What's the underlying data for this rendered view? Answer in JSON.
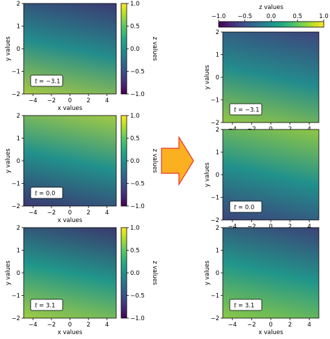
{
  "colormap": "viridis",
  "colors": {
    "arrow_fill": "#fbb022",
    "arrow_stroke": "#e8332a"
  },
  "chart_data": [
    {
      "group": "before",
      "type": "heatmap",
      "function": "z = sin(x + 2*y + t)",
      "xlabel": "x values",
      "ylabel": "y values",
      "xlim": [
        -5,
        5
      ],
      "ylim": [
        -2,
        2
      ],
      "xticks": [
        -4,
        -2,
        0,
        2,
        4
      ],
      "yticks": [
        -2,
        -1,
        0,
        1,
        2
      ],
      "colorbar": {
        "label": "z values",
        "range": [
          -1.0,
          1.0
        ],
        "ticks": [
          -1.0,
          -0.5,
          0.0,
          0.5,
          1.0
        ],
        "placement": "right of each panel"
      },
      "panels": [
        {
          "t": -3.1,
          "annotation": "t = -3.1"
        },
        {
          "t": 0.0,
          "annotation": "t = 0.0"
        },
        {
          "t": 3.1,
          "annotation": "t = 3.1"
        }
      ]
    },
    {
      "group": "after",
      "type": "heatmap",
      "function": "z = sin(x + 2*y + t)",
      "xlabel": "x values",
      "ylabel": "y values",
      "xlim": [
        -5,
        5
      ],
      "ylim": [
        -2,
        2
      ],
      "xticks": [
        -4,
        -2,
        0,
        2,
        4
      ],
      "yticks": [
        -2,
        -1,
        0,
        1,
        2
      ],
      "colorbar": {
        "label": "z values",
        "range": [
          -1.0,
          1.0
        ],
        "ticks": [
          -1.0,
          -0.5,
          0.0,
          0.5,
          1.0
        ],
        "placement": "shared, top"
      },
      "panels": [
        {
          "t": -3.1,
          "annotation": "t = -3.1"
        },
        {
          "t": 0.0,
          "annotation": "t = 0.0"
        },
        {
          "t": 3.1,
          "annotation": "t = 3.1"
        }
      ]
    }
  ]
}
